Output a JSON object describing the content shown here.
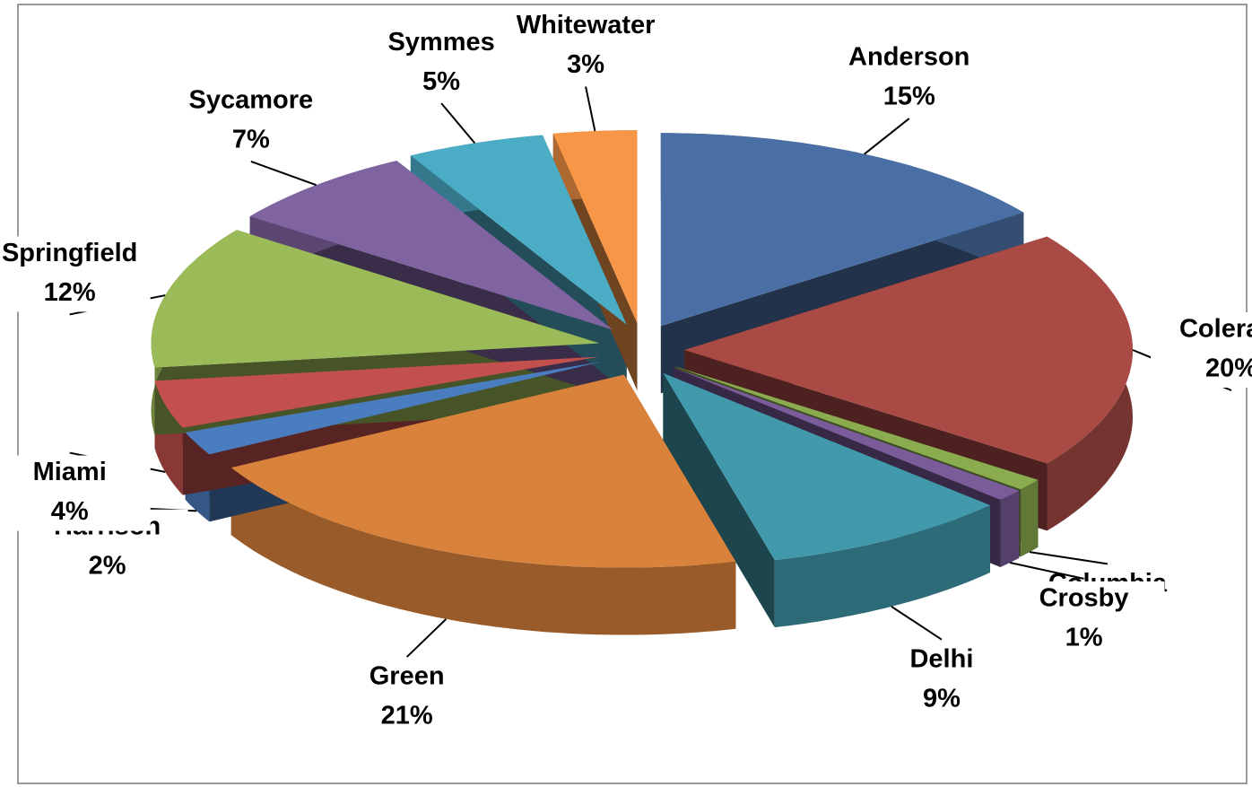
{
  "chart_data": {
    "type": "pie3d",
    "categories": [
      "Anderson",
      "Colerain",
      "Columbia",
      "Crosby",
      "Delhi",
      "Green",
      "Harrison",
      "Miami",
      "Springfield",
      "Sycamore",
      "Symmes",
      "Whitewater"
    ],
    "values": [
      15,
      20,
      1,
      1,
      9,
      21,
      2,
      4,
      12,
      7,
      5,
      3
    ],
    "value_labels": [
      "15%",
      "20%",
      "1%",
      "1%",
      "9%",
      "21%",
      "2%",
      "4%",
      "12%",
      "7%",
      "5%",
      "3%"
    ],
    "colors": [
      "#4a6fa5",
      "#a94a45",
      "#8aab4e",
      "#7a5c9a",
      "#4199ab",
      "#d9823b",
      "#4a7cc0",
      "#c4504d",
      "#9bbb59",
      "#8064a2",
      "#4bacc6",
      "#f79646"
    ]
  }
}
